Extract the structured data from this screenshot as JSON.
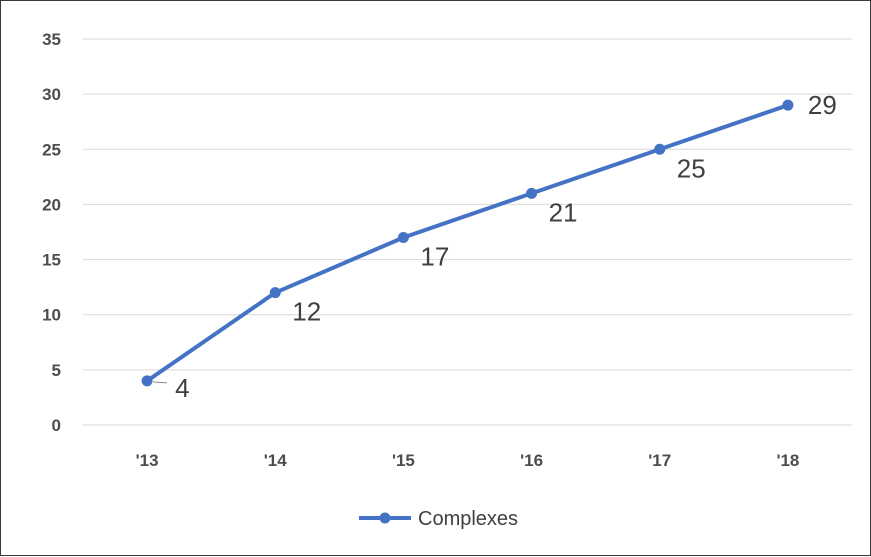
{
  "chart_data": {
    "type": "line",
    "categories": [
      "'13",
      "'14",
      "'15",
      "'16",
      "'17",
      "'18"
    ],
    "series": [
      {
        "name": "Complexes",
        "values": [
          4,
          12,
          17,
          21,
          25,
          29
        ],
        "color": "#4472c4"
      }
    ],
    "data_labels": [
      "4",
      "12",
      "17",
      "21",
      "25",
      "29"
    ],
    "y_ticks": [
      "0",
      "5",
      "10",
      "15",
      "20",
      "25",
      "30",
      "35"
    ],
    "ylim": [
      0,
      35
    ],
    "grid": true,
    "legend_position": "bottom",
    "legend_label": "Complexes"
  }
}
